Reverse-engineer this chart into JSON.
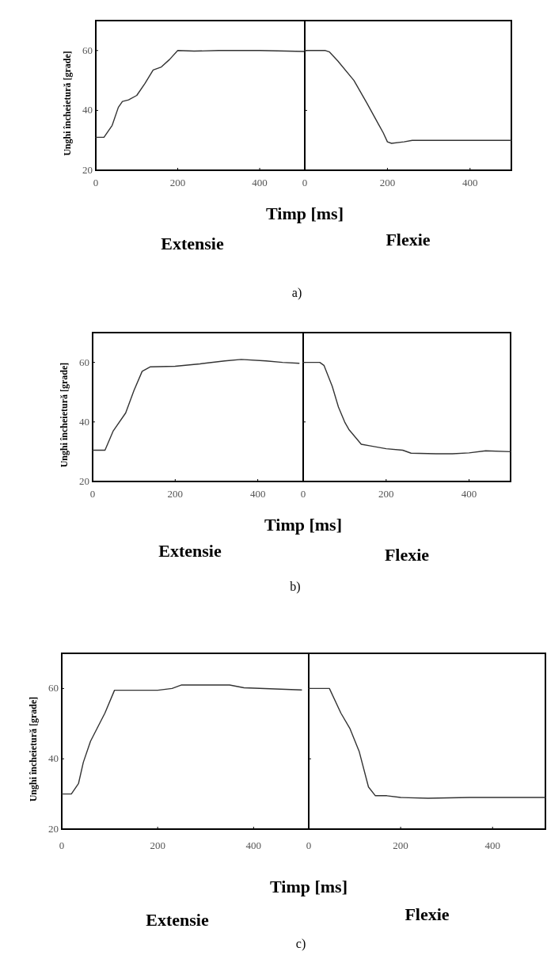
{
  "chart_data": [
    {
      "type": "line",
      "title": "Extensie",
      "xlabel": "Timp [ms]",
      "ylabel": "Unghi încheietură [grade]",
      "x": [
        0,
        20,
        40,
        55,
        65,
        80,
        100,
        120,
        140,
        160,
        180,
        200,
        240,
        300,
        400,
        510
      ],
      "values": [
        31,
        31,
        35,
        41,
        43,
        43.5,
        45,
        49,
        53.5,
        54.5,
        57,
        60,
        59.8,
        60,
        60,
        59.7
      ],
      "color": "#333333",
      "xlim": [
        0,
        510
      ],
      "ylim": [
        20,
        70
      ],
      "xticks": [
        0,
        200,
        400
      ],
      "yticks": [
        20,
        40,
        60
      ],
      "grid": false
    },
    {
      "type": "line",
      "title": "Flexie",
      "annotations": [
        "a)"
      ],
      "x": [
        0,
        50,
        60,
        80,
        119,
        150,
        180,
        190,
        200,
        210,
        240,
        260,
        400,
        500
      ],
      "values": [
        60,
        60,
        59.5,
        56.5,
        50,
        42.5,
        35,
        32.5,
        29.5,
        29,
        29.5,
        30,
        30,
        30
      ],
      "color": "#333333",
      "xlim": [
        0,
        500
      ],
      "ylim": [
        20,
        70
      ],
      "xticks": [
        0,
        200,
        400
      ],
      "yticks": [
        20,
        40,
        60
      ],
      "tick_labels": "x",
      "grid": false
    },
    {
      "type": "line",
      "title": "Extensie",
      "xlabel": "Timp [ms]",
      "ylabel": "Unghi încheietură [grade]",
      "x": [
        0,
        30,
        50,
        80,
        100,
        120,
        140,
        200,
        260,
        320,
        360,
        420,
        460,
        500
      ],
      "values": [
        30.5,
        30.5,
        37,
        43,
        50.5,
        57,
        58.5,
        58.7,
        59.5,
        60.5,
        61,
        60.5,
        60,
        59.7
      ],
      "color": "#333333",
      "xlim": [
        0,
        510
      ],
      "ylim": [
        20,
        70
      ],
      "xticks": [
        0,
        200,
        400
      ],
      "yticks": [
        20,
        40,
        60
      ],
      "grid": false
    },
    {
      "type": "line",
      "title": "Flexie",
      "annotations": [
        "b)"
      ],
      "x": [
        0,
        40,
        50,
        70,
        85,
        100,
        110,
        140,
        160,
        200,
        240,
        260,
        320,
        360,
        400,
        440,
        500
      ],
      "values": [
        60,
        60,
        59,
        52,
        45,
        40,
        37.5,
        32.5,
        32,
        31,
        30.5,
        29.5,
        29.3,
        29.3,
        29.6,
        30.3,
        30
      ],
      "color": "#333333",
      "xlim": [
        0,
        500
      ],
      "ylim": [
        20,
        70
      ],
      "xticks": [
        0,
        200,
        400
      ],
      "yticks": [
        20,
        40,
        60
      ],
      "tick_labels": "x",
      "grid": false
    },
    {
      "type": "line",
      "title": "Extensie",
      "xlabel": "Timp [ms]",
      "ylabel": "Unghi încheietură [grade]",
      "x": [
        0,
        20,
        35,
        45,
        60,
        75,
        90,
        110,
        200,
        230,
        250,
        350,
        380,
        500
      ],
      "values": [
        30,
        30,
        33,
        39,
        45,
        49,
        53,
        59.5,
        59.5,
        60,
        61,
        61,
        60.2,
        59.6
      ],
      "color": "#333333",
      "xlim": [
        0,
        515
      ],
      "ylim": [
        20,
        70
      ],
      "xticks": [
        0,
        200,
        400
      ],
      "yticks": [
        20,
        40,
        60
      ],
      "grid": false
    },
    {
      "type": "line",
      "title": "Flexie",
      "annotations": [
        "c)"
      ],
      "x": [
        0,
        45,
        70,
        90,
        110,
        130,
        145,
        170,
        200,
        260,
        350,
        515
      ],
      "values": [
        60,
        60,
        53,
        48.5,
        42,
        32,
        29.5,
        29.5,
        29,
        28.8,
        29,
        29
      ],
      "color": "#333333",
      "xlim": [
        0,
        515
      ],
      "ylim": [
        20,
        70
      ],
      "xticks": [
        0,
        200,
        400
      ],
      "yticks": [
        20,
        40,
        60
      ],
      "tick_labels": "x",
      "grid": false
    }
  ]
}
